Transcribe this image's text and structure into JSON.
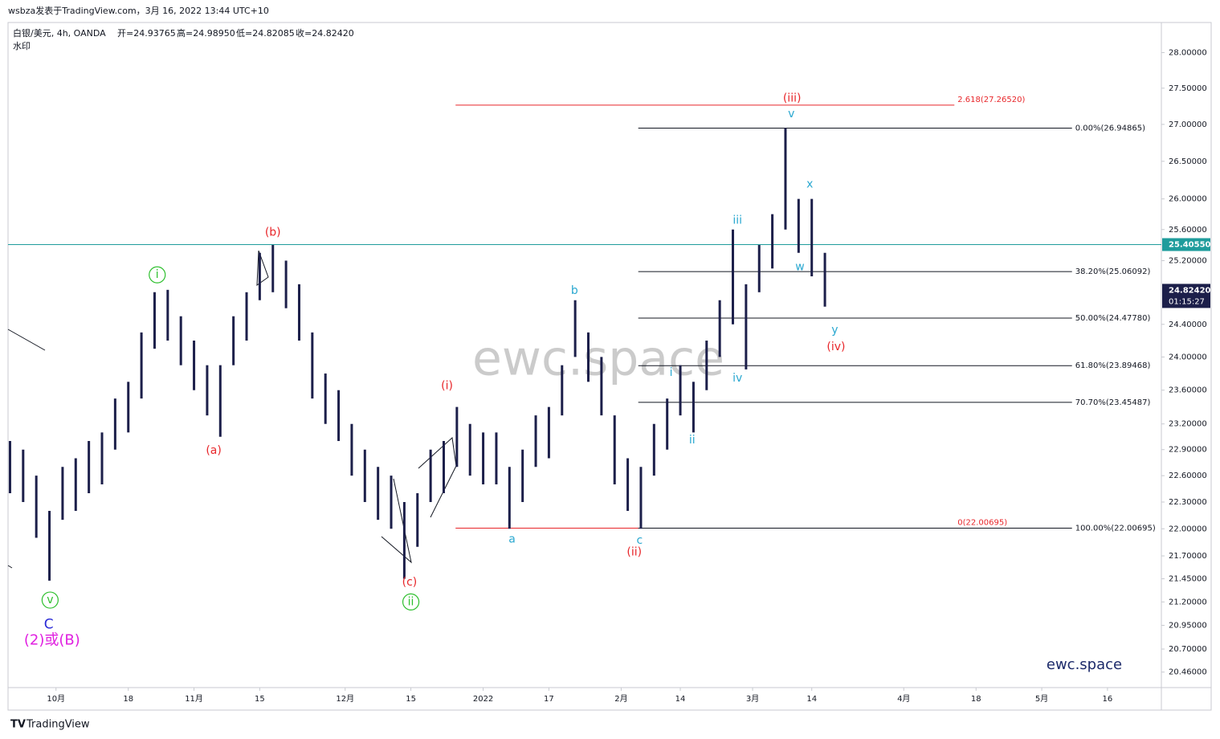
{
  "header": "wsbza发表于TradingView.com，3月 16, 2022 13:44 UTC+10",
  "footer": "TradingView",
  "chart_data": {
    "type": "ohlc",
    "legend": {
      "symbol": "白银/美元, 4h, OANDA",
      "open": "开=24.93765",
      "high": "高=24.98950",
      "low": "低=24.82085",
      "close": "收=24.82420",
      "note": "水印"
    },
    "watermark": "ewc.space",
    "signature": "ewc.space",
    "log_scale": true,
    "xlim": [
      -7.3,
      168.2
    ],
    "ylim": [
      20.3,
      28.43
    ],
    "xticks": [
      {
        "value": 0,
        "label": "10月"
      },
      {
        "value": 11,
        "label": "18"
      },
      {
        "value": 21,
        "label": "11月"
      },
      {
        "value": 31,
        "label": "15"
      },
      {
        "value": 44,
        "label": "12月"
      },
      {
        "value": 54,
        "label": "15"
      },
      {
        "value": 65,
        "label": "2022"
      },
      {
        "value": 75,
        "label": "17"
      },
      {
        "value": 86,
        "label": "2月"
      },
      {
        "value": 95,
        "label": "14"
      },
      {
        "value": 106,
        "label": "3月"
      },
      {
        "value": 115,
        "label": "14"
      },
      {
        "value": 129,
        "label": "4月"
      },
      {
        "value": 140,
        "label": "18"
      },
      {
        "value": 150,
        "label": "5月"
      },
      {
        "value": 160,
        "label": "16"
      }
    ],
    "yticks": [
      {
        "value": 28,
        "label": "28.00000"
      },
      {
        "value": 27.5,
        "label": "27.50000"
      },
      {
        "value": 27,
        "label": "27.00000"
      },
      {
        "value": 26.5,
        "label": "26.50000"
      },
      {
        "value": 26,
        "label": "26.00000"
      },
      {
        "value": 25.6,
        "label": "25.60000"
      },
      {
        "value": 25.2,
        "label": "25.20000"
      },
      {
        "value": 24.4,
        "label": "24.40000"
      },
      {
        "value": 24,
        "label": "24.00000"
      },
      {
        "value": 23.6,
        "label": "23.60000"
      },
      {
        "value": 23.2,
        "label": "23.20000"
      },
      {
        "value": 22.9,
        "label": "22.90000"
      },
      {
        "value": 22.6,
        "label": "22.60000"
      },
      {
        "value": 22.3,
        "label": "22.30000"
      },
      {
        "value": 22,
        "label": "22.00000"
      },
      {
        "value": 21.7,
        "label": "21.70000"
      },
      {
        "value": 21.45,
        "label": "21.45000"
      },
      {
        "value": 21.2,
        "label": "21.20000"
      },
      {
        "value": 20.95,
        "label": "20.95000"
      },
      {
        "value": 20.7,
        "label": "20.70000"
      },
      {
        "value": 20.46,
        "label": "20.46000"
      }
    ],
    "series": [
      {
        "color": "#1c1f4a",
        "x": [
          -7,
          -5,
          -3,
          -1,
          1,
          3,
          5,
          7,
          9,
          11,
          13,
          15,
          17,
          19,
          21,
          23,
          25,
          27,
          29,
          31,
          33,
          35,
          37,
          39,
          41,
          43,
          45,
          47,
          49,
          51,
          53,
          55,
          57,
          59,
          61,
          63,
          65,
          67,
          69,
          71,
          73,
          75,
          77,
          79,
          81,
          83,
          85,
          87,
          89,
          91,
          93,
          95,
          97,
          99,
          101,
          103,
          105,
          107,
          109,
          111,
          113,
          115,
          117
        ],
        "high": [
          23.0,
          22.9,
          22.6,
          22.2,
          22.7,
          22.8,
          23.0,
          23.1,
          23.5,
          23.7,
          24.3,
          24.8,
          24.83,
          24.5,
          24.2,
          23.9,
          23.9,
          24.5,
          24.8,
          25.3,
          25.4,
          25.2,
          24.9,
          24.3,
          23.8,
          23.6,
          23.2,
          22.9,
          22.7,
          22.6,
          22.3,
          22.4,
          22.9,
          23.0,
          23.4,
          23.2,
          23.1,
          23.1,
          22.7,
          22.9,
          23.3,
          23.4,
          23.9,
          24.7,
          24.3,
          24.0,
          23.3,
          22.8,
          22.7,
          23.2,
          23.5,
          23.9,
          23.7,
          24.2,
          24.7,
          25.6,
          24.9,
          25.4,
          25.8,
          26.95,
          26.0,
          26.0,
          25.3
        ],
        "low": [
          22.4,
          22.3,
          21.9,
          21.43,
          22.1,
          22.2,
          22.4,
          22.5,
          22.9,
          23.1,
          23.5,
          24.1,
          24.2,
          23.9,
          23.6,
          23.3,
          23.05,
          23.9,
          24.2,
          24.7,
          24.8,
          24.6,
          24.2,
          23.5,
          23.2,
          23.0,
          22.6,
          22.3,
          22.1,
          22.0,
          21.45,
          21.8,
          22.3,
          22.4,
          22.7,
          22.6,
          22.5,
          22.5,
          22.0,
          22.3,
          22.7,
          22.8,
          23.3,
          24.0,
          23.7,
          23.3,
          22.5,
          22.2,
          22.0,
          22.6,
          22.9,
          23.3,
          23.1,
          23.6,
          24.0,
          24.4,
          23.85,
          24.8,
          25.1,
          25.6,
          25.3,
          25.0,
          24.62
        ]
      }
    ],
    "ext_levels": [
      {
        "value": 27.2652,
        "label": "2.618(27.26520)",
        "color": "#e8262a",
        "xrange": [
          60.8,
          136.7
        ]
      },
      {
        "value": 22.00695,
        "label": "0(22.00695)",
        "color": "#e8262a",
        "xrange": [
          60.8,
          136.7
        ]
      }
    ],
    "fib_levels": [
      {
        "value": 26.94865,
        "label": "0.00%(26.94865)"
      },
      {
        "value": 25.06092,
        "label": "38.20%(25.06092)"
      },
      {
        "value": 24.4778,
        "label": "50.00%(24.47780)"
      },
      {
        "value": 23.89468,
        "label": "61.80%(23.89468)"
      },
      {
        "value": 23.45487,
        "label": "70.70%(23.45487)"
      },
      {
        "value": 22.00695,
        "label": "100.00%(22.00695)"
      }
    ],
    "fib_color": "#131722",
    "fib_xrange": [
      88.6,
      154.6
    ],
    "hline": {
      "value": 25.4055,
      "label": "25.40550",
      "color": "#1f9c9c"
    },
    "last_price": {
      "value": 24.8242,
      "label": "24.82420",
      "countdown": "01:15:27",
      "color": "#1c1f4a"
    },
    "annotations": [
      {
        "text": "i",
        "x": 15.4,
        "y": 25.02,
        "color": "#2dbf2d",
        "circle": true
      },
      {
        "text": "(a)",
        "x": 24.0,
        "y": 22.89,
        "color": "#e8262a"
      },
      {
        "text": "(b)",
        "x": 33.0,
        "y": 25.56,
        "color": "#e8262a"
      },
      {
        "text": "(c)",
        "x": 53.8,
        "y": 21.41,
        "color": "#e8262a"
      },
      {
        "text": "ii",
        "x": 54.0,
        "y": 21.2,
        "color": "#2dbf2d",
        "circle": true
      },
      {
        "text": "v",
        "x": -0.9,
        "y": 21.22,
        "color": "#2dbf2d",
        "circle": true
      },
      {
        "text": "C",
        "x": -1.1,
        "y": 20.96,
        "color": "#2a2ad6",
        "size": 17
      },
      {
        "text": "(2)或(B)",
        "x": -0.6,
        "y": 20.79,
        "color": "#e020e0",
        "size": 18
      },
      {
        "text": "(i)",
        "x": 59.5,
        "y": 23.65,
        "color": "#e8262a"
      },
      {
        "text": "a",
        "x": 69.4,
        "y": 21.88,
        "color": "#2aa8d0"
      },
      {
        "text": "b",
        "x": 78.9,
        "y": 24.82,
        "color": "#2aa8d0"
      },
      {
        "text": "c",
        "x": 88.8,
        "y": 21.87,
        "color": "#2aa8d0"
      },
      {
        "text": "(ii)",
        "x": 88.0,
        "y": 21.74,
        "color": "#e8262a"
      },
      {
        "text": "i",
        "x": 93.6,
        "y": 23.81,
        "color": "#2aa8d0"
      },
      {
        "text": "ii",
        "x": 96.8,
        "y": 23.01,
        "color": "#2aa8d0"
      },
      {
        "text": "iii",
        "x": 103.7,
        "y": 25.72,
        "color": "#2aa8d0"
      },
      {
        "text": "iv",
        "x": 103.7,
        "y": 23.74,
        "color": "#2aa8d0"
      },
      {
        "text": "(iii)",
        "x": 112.0,
        "y": 27.36,
        "color": "#e8262a"
      },
      {
        "text": "v",
        "x": 111.9,
        "y": 27.14,
        "color": "#2aa8d0"
      },
      {
        "text": "x",
        "x": 114.7,
        "y": 26.19,
        "color": "#2aa8d0"
      },
      {
        "text": "w",
        "x": 113.2,
        "y": 25.12,
        "color": "#2aa8d0"
      },
      {
        "text": "y",
        "x": 118.5,
        "y": 24.33,
        "color": "#2aa8d0"
      },
      {
        "text": "(iv)",
        "x": 118.7,
        "y": 24.12,
        "color": "#e8262a"
      }
    ]
  }
}
